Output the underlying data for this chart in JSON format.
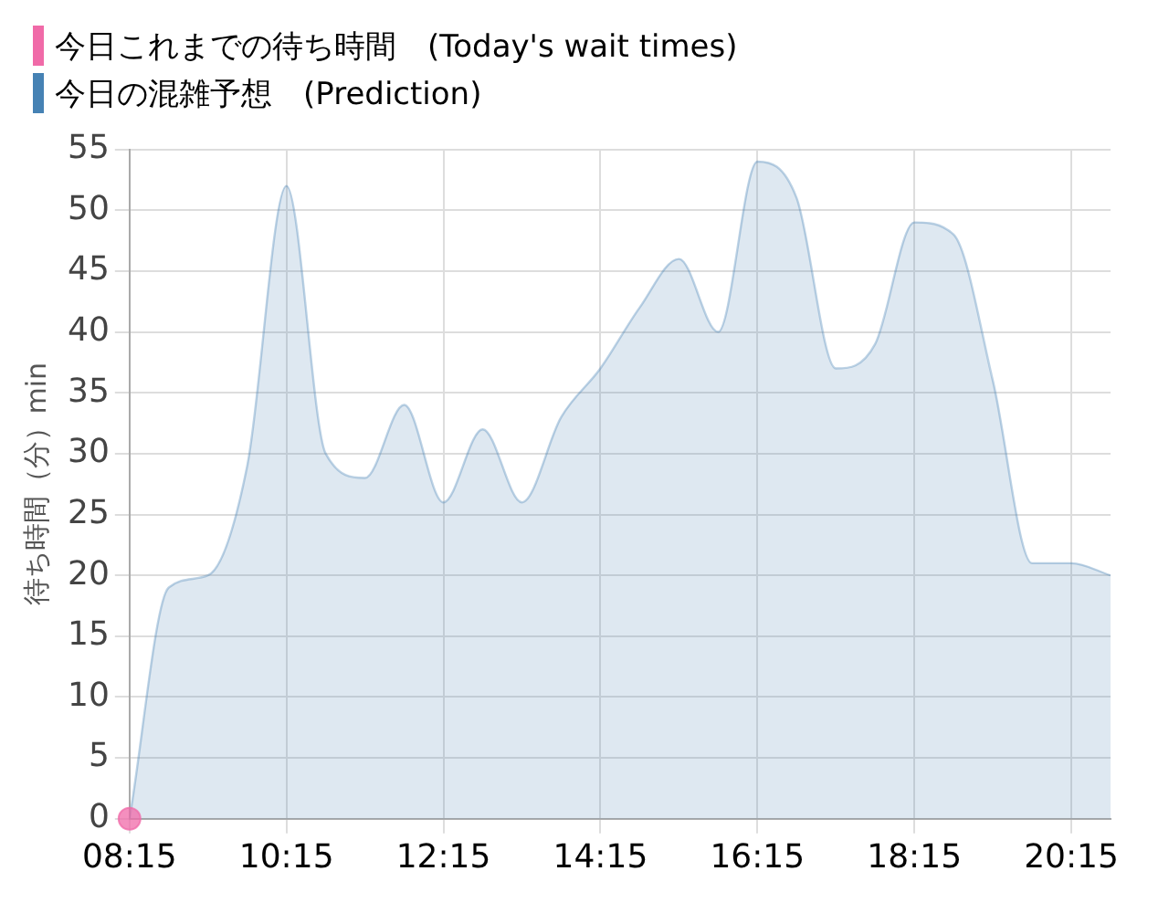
{
  "chart_data": {
    "type": "area",
    "ylabel": "待ち時間（分）min",
    "xlim": [
      8.25,
      20.75
    ],
    "xticks": [
      {
        "value": 8.25,
        "label": "08:15"
      },
      {
        "value": 10.25,
        "label": "10:15"
      },
      {
        "value": 12.25,
        "label": "12:15"
      },
      {
        "value": 14.25,
        "label": "14:15"
      },
      {
        "value": 16.25,
        "label": "16:15"
      },
      {
        "value": 18.25,
        "label": "18:15"
      },
      {
        "value": 20.25,
        "label": "20:15"
      }
    ],
    "ylim": [
      0,
      55
    ],
    "yticks": [
      0,
      5,
      10,
      15,
      20,
      25,
      30,
      35,
      40,
      45,
      50,
      55
    ],
    "grid": true,
    "legend": "top left",
    "series": [
      {
        "name": "今日これまでの待ち時間　(Today's wait times)",
        "type": "scatter",
        "marker": "circle",
        "color": "#f06aa8",
        "x": [
          8.25
        ],
        "values": [
          0
        ]
      },
      {
        "name": "今日の混雑予想　(Prediction)",
        "color": "#4682b4",
        "x": [
          8.25,
          8.75,
          9.25,
          9.75,
          10.25,
          10.75,
          11.25,
          11.75,
          12.25,
          12.75,
          13.25,
          13.75,
          14.25,
          14.75,
          15.25,
          15.75,
          16.25,
          16.75,
          17.25,
          17.75,
          18.25,
          18.75,
          19.25,
          19.75,
          20.25,
          20.75
        ],
        "values": [
          0,
          19,
          20,
          29,
          52,
          30,
          28,
          34,
          26,
          32,
          26,
          33,
          37,
          42,
          46,
          40,
          54,
          51,
          37,
          39,
          49,
          48,
          36,
          21,
          21,
          20
        ]
      }
    ]
  }
}
